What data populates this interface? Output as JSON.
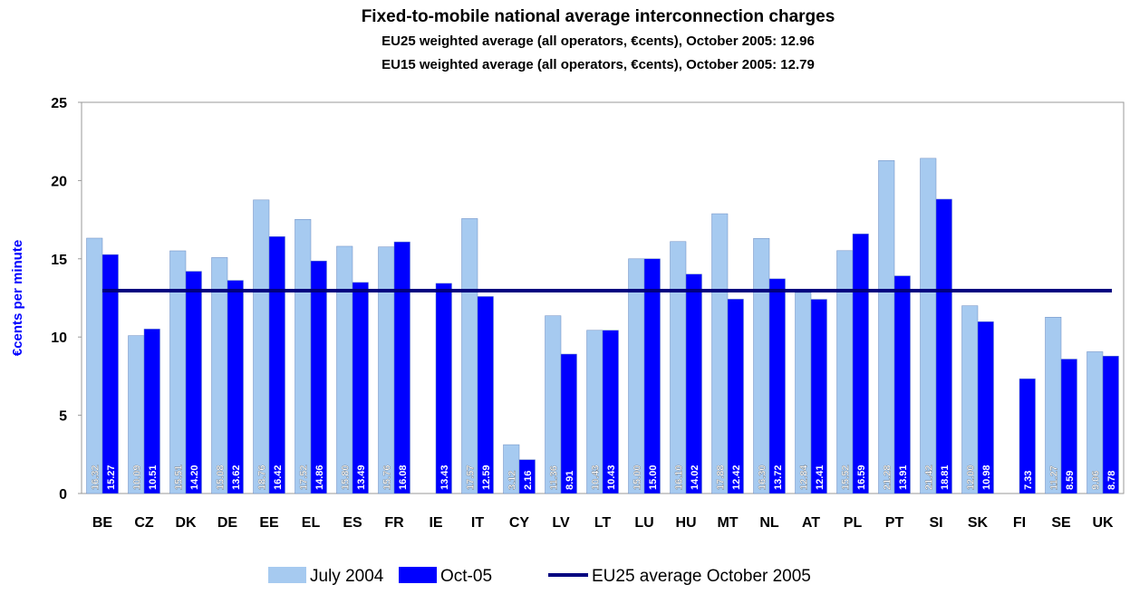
{
  "chart_data": {
    "type": "bar",
    "title": "Fixed-to-mobile national average interconnection charges",
    "subtitles": [
      "EU25  weighted average (all operators, €cents), October 2005: 12.96",
      "EU15  weighted average (all operators, €cents), October 2005: 12.79"
    ],
    "y_label": "€cents per minute",
    "categories": [
      "BE",
      "CZ",
      "DK",
      "DE",
      "EE",
      "EL",
      "ES",
      "FR",
      "IE",
      "IT",
      "CY",
      "LV",
      "LT",
      "LU",
      "HU",
      "MT",
      "NL",
      "AT",
      "PL",
      "PT",
      "SI",
      "SK",
      "FI",
      "SE",
      "UK"
    ],
    "series": [
      {
        "name": "July 2004",
        "color": "#a6caf0",
        "values": [
          16.32,
          10.09,
          15.51,
          15.08,
          18.76,
          17.52,
          15.8,
          15.76,
          null,
          17.57,
          3.12,
          11.36,
          10.43,
          15,
          16.1,
          17.88,
          16.3,
          12.84,
          15.52,
          21.28,
          21.42,
          12,
          null,
          11.27,
          9.06
        ],
        "value_labels": [
          "16.32",
          "10.09",
          "15.51",
          "15.08",
          "18.76",
          "17.52",
          "15.80",
          "15.76",
          null,
          "17.57",
          "3.12",
          "11.36",
          "10.43",
          "15.00",
          "16.10",
          "17.88",
          "16.30",
          "12.84",
          "15.52",
          "21.28",
          "21.42",
          "12.00",
          null,
          "11.27",
          "9.06"
        ]
      },
      {
        "name": "Oct-05",
        "color": "#0000ff",
        "values": [
          15.27,
          10.51,
          14.2,
          13.62,
          16.42,
          14.86,
          13.49,
          16.08,
          13.43,
          12.59,
          2.16,
          8.91,
          10.43,
          15,
          14.02,
          12.42,
          13.72,
          12.41,
          16.59,
          13.91,
          18.81,
          10.98,
          7.33,
          8.59,
          8.78
        ],
        "value_labels": [
          "15.27",
          "10.51",
          "14.20",
          "13.62",
          "16.42",
          "14.86",
          "13.49",
          "16.08",
          "13.43",
          "12.59",
          "2.16",
          "8.91",
          "10.43",
          "15.00",
          "14.02",
          "12.42",
          "13.72",
          "12.41",
          "16.59",
          "13.91",
          "18.81",
          "10.98",
          "7.33",
          "8.59",
          "8.78"
        ]
      }
    ],
    "average": {
      "name": "EU25 average October 2005",
      "color": "#000080",
      "value": 12.96
    },
    "ylim": [
      0,
      25
    ],
    "yticks": [
      0,
      5,
      10,
      15,
      20,
      25
    ],
    "grid": false
  }
}
